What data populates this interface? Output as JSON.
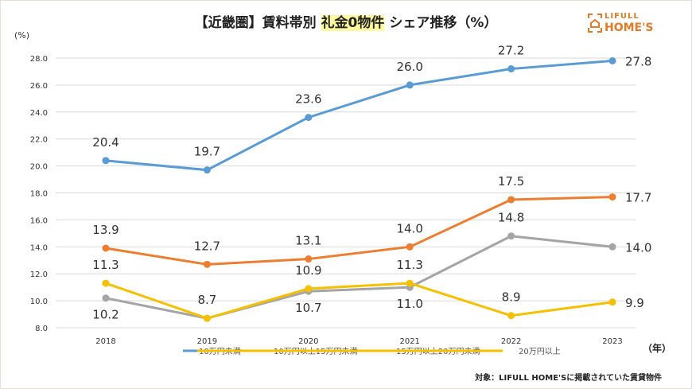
{
  "title_parts": [
    "【近畿圏】賃料帯別 ",
    "礼金0物件",
    " シェア推移（%）"
  ],
  "logo": {
    "line1": "LIFULL",
    "line2": "HOME'S",
    "color": "#e07b2a"
  },
  "footnote": "対象：LIFULL HOME'Sに掲載されていた賃貸物件",
  "chart_data": {
    "type": "line",
    "title": "【近畿圏】賃料帯別 礼金0物件 シェア推移（%）",
    "ylabel": "(%)",
    "xlabel": "（年）",
    "categories": [
      "2018",
      "2019",
      "2020",
      "2021",
      "2022",
      "2023"
    ],
    "ylim": [
      8,
      28
    ],
    "yticks": [
      "8.0",
      "10.0",
      "12.0",
      "14.0",
      "16.0",
      "18.0",
      "20.0",
      "22.0",
      "24.0",
      "26.0",
      "28.0"
    ],
    "grid": true,
    "legend": "bottom",
    "series": [
      {
        "name": "10万円未満",
        "color": "#5b9bd5",
        "values": [
          20.4,
          19.7,
          23.6,
          26.0,
          27.2,
          27.8
        ]
      },
      {
        "name": "10万円以上15万円未満",
        "color": "#ed7d31",
        "values": [
          13.9,
          12.7,
          13.1,
          14.0,
          17.5,
          17.7
        ]
      },
      {
        "name": "15万円以上20万円未満",
        "color": "#a5a5a5",
        "values": [
          10.2,
          8.7,
          10.7,
          11.0,
          14.8,
          14.0
        ]
      },
      {
        "name": "20万円以上",
        "color": "#f5c000",
        "values": [
          11.3,
          8.7,
          10.9,
          11.3,
          8.9,
          9.9
        ]
      }
    ]
  }
}
